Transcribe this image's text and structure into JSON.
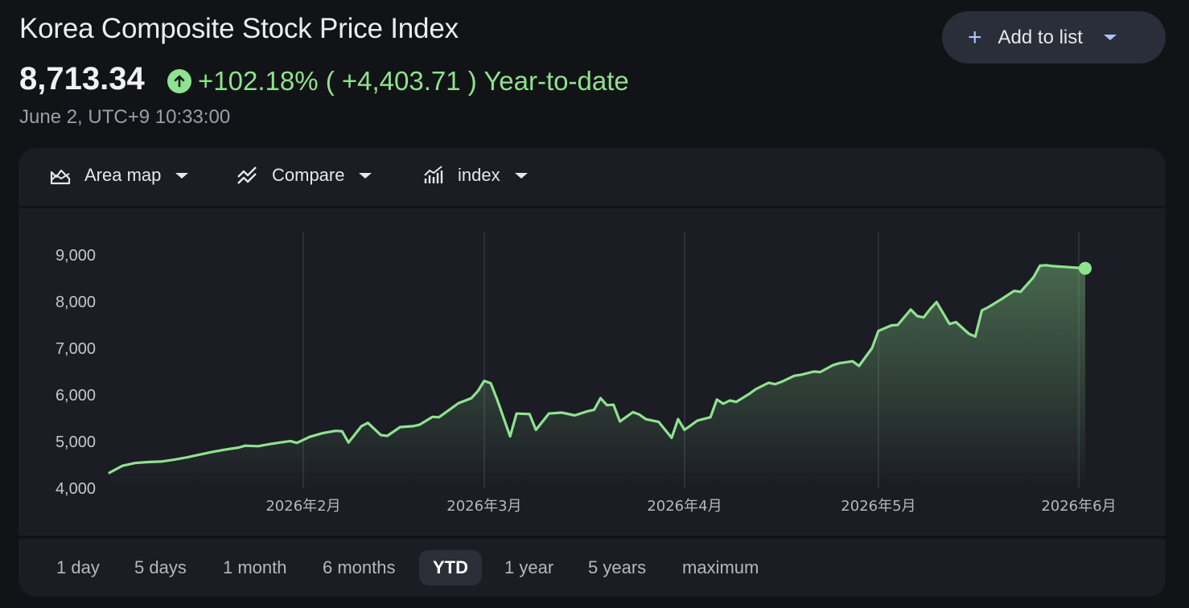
{
  "header": {
    "title": "Korea Composite Stock Price Index",
    "add_to_list_label": "Add to list",
    "price": "8,713.34",
    "change_text": "+102.18% ( +4,403.71 ) Year-to-date",
    "timestamp": "June 2, UTC+9 10:33:00"
  },
  "toolbar": {
    "chart_type_label": "Area map",
    "compare_label": "Compare",
    "indicator_label": "index"
  },
  "ranges": [
    "1 day",
    "5 days",
    "1 month",
    "6 months",
    "YTD",
    "1 year",
    "5 years",
    "maximum"
  ],
  "active_range": "YTD",
  "colors": {
    "positive": "#8fe28f",
    "background": "#121317",
    "panel": "#1b1c24",
    "accent": "#a8c4ff"
  },
  "chart_data": {
    "type": "area",
    "title": "",
    "xlabel": "",
    "ylabel": "",
    "ylim": [
      4000,
      9000
    ],
    "yticks": [
      4000,
      5000,
      6000,
      7000,
      8000,
      9000
    ],
    "ytick_labels": [
      "4,000",
      "5,000",
      "6,000",
      "7,000",
      "8,000",
      "9,000"
    ],
    "xlim": [
      "2026-01-02",
      "2026-06-02"
    ],
    "xticks": [
      "2026-02-01",
      "2026-03-01",
      "2026-04-01",
      "2026-05-01",
      "2026-06-01"
    ],
    "xtick_labels": [
      "2026年2月",
      "2026年3月",
      "2026年4月",
      "2026年5月",
      "2026年6月"
    ],
    "grid": "vertical at x ticks",
    "legend": "none",
    "series": [
      {
        "color": "#8fe28f",
        "points": [
          [
            "2026-01-02",
            4330
          ],
          [
            "2026-01-04",
            4480
          ],
          [
            "2026-01-06",
            4540
          ],
          [
            "2026-01-08",
            4560
          ],
          [
            "2026-01-10",
            4570
          ],
          [
            "2026-01-12",
            4610
          ],
          [
            "2026-01-14",
            4660
          ],
          [
            "2026-01-16",
            4720
          ],
          [
            "2026-01-18",
            4780
          ],
          [
            "2026-01-20",
            4830
          ],
          [
            "2026-01-22",
            4870
          ],
          [
            "2026-01-23",
            4910
          ],
          [
            "2026-01-25",
            4900
          ],
          [
            "2026-01-27",
            4950
          ],
          [
            "2026-01-29",
            4990
          ],
          [
            "2026-01-30",
            5010
          ],
          [
            "2026-01-31",
            4970
          ],
          [
            "2026-02-02",
            5100
          ],
          [
            "2026-02-04",
            5180
          ],
          [
            "2026-02-06",
            5230
          ],
          [
            "2026-02-07",
            5220
          ],
          [
            "2026-02-08",
            4980
          ],
          [
            "2026-02-10",
            5330
          ],
          [
            "2026-02-11",
            5400
          ],
          [
            "2026-02-13",
            5140
          ],
          [
            "2026-02-14",
            5120
          ],
          [
            "2026-02-16",
            5310
          ],
          [
            "2026-02-18",
            5330
          ],
          [
            "2026-02-19",
            5360
          ],
          [
            "2026-02-21",
            5530
          ],
          [
            "2026-02-22",
            5520
          ],
          [
            "2026-02-24",
            5720
          ],
          [
            "2026-02-25",
            5820
          ],
          [
            "2026-02-27",
            5930
          ],
          [
            "2026-02-28",
            6080
          ],
          [
            "2026-03-01",
            6300
          ],
          [
            "2026-03-02",
            6250
          ],
          [
            "2026-03-03",
            5900
          ],
          [
            "2026-03-05",
            5110
          ],
          [
            "2026-03-06",
            5600
          ],
          [
            "2026-03-08",
            5590
          ],
          [
            "2026-03-09",
            5250
          ],
          [
            "2026-03-11",
            5600
          ],
          [
            "2026-03-13",
            5620
          ],
          [
            "2026-03-15",
            5560
          ],
          [
            "2026-03-17",
            5650
          ],
          [
            "2026-03-18",
            5680
          ],
          [
            "2026-03-19",
            5930
          ],
          [
            "2026-03-20",
            5780
          ],
          [
            "2026-03-21",
            5790
          ],
          [
            "2026-03-22",
            5430
          ],
          [
            "2026-03-24",
            5630
          ],
          [
            "2026-03-25",
            5580
          ],
          [
            "2026-03-26",
            5480
          ],
          [
            "2026-03-28",
            5420
          ],
          [
            "2026-03-30",
            5080
          ],
          [
            "2026-03-31",
            5480
          ],
          [
            "2026-04-01",
            5250
          ],
          [
            "2026-04-03",
            5450
          ],
          [
            "2026-04-05",
            5520
          ],
          [
            "2026-04-06",
            5900
          ],
          [
            "2026-04-07",
            5810
          ],
          [
            "2026-04-08",
            5880
          ],
          [
            "2026-04-09",
            5850
          ],
          [
            "2026-04-11",
            6020
          ],
          [
            "2026-04-12",
            6120
          ],
          [
            "2026-04-14",
            6260
          ],
          [
            "2026-04-15",
            6230
          ],
          [
            "2026-04-16",
            6280
          ],
          [
            "2026-04-18",
            6410
          ],
          [
            "2026-04-19",
            6430
          ],
          [
            "2026-04-21",
            6500
          ],
          [
            "2026-04-22",
            6490
          ],
          [
            "2026-04-24",
            6640
          ],
          [
            "2026-04-25",
            6680
          ],
          [
            "2026-04-27",
            6720
          ],
          [
            "2026-04-28",
            6620
          ],
          [
            "2026-04-30",
            7000
          ],
          [
            "2026-05-01",
            7370
          ],
          [
            "2026-05-03",
            7490
          ],
          [
            "2026-05-04",
            7500
          ],
          [
            "2026-05-06",
            7830
          ],
          [
            "2026-05-07",
            7690
          ],
          [
            "2026-05-08",
            7660
          ],
          [
            "2026-05-09",
            7840
          ],
          [
            "2026-05-10",
            7990
          ],
          [
            "2026-05-12",
            7520
          ],
          [
            "2026-05-13",
            7560
          ],
          [
            "2026-05-15",
            7310
          ],
          [
            "2026-05-16",
            7250
          ],
          [
            "2026-05-17",
            7810
          ],
          [
            "2026-05-18",
            7880
          ],
          [
            "2026-05-20",
            8050
          ],
          [
            "2026-05-22",
            8230
          ],
          [
            "2026-05-23",
            8210
          ],
          [
            "2026-05-25",
            8520
          ],
          [
            "2026-05-26",
            8770
          ],
          [
            "2026-05-27",
            8780
          ],
          [
            "2026-05-28",
            8760
          ],
          [
            "2026-06-02",
            8713.34
          ]
        ]
      }
    ]
  }
}
